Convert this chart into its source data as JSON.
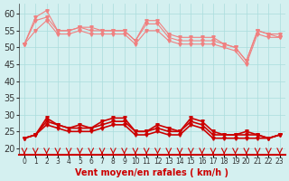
{
  "x": [
    0,
    1,
    2,
    3,
    4,
    5,
    6,
    7,
    8,
    9,
    10,
    11,
    12,
    13,
    14,
    15,
    16,
    17,
    18,
    19,
    20,
    21,
    22,
    23
  ],
  "rafales_max": [
    51,
    59,
    61,
    55,
    55,
    56,
    56,
    55,
    55,
    55,
    52,
    58,
    58,
    54,
    53,
    53,
    53,
    53,
    51,
    50,
    46,
    55,
    54,
    54
  ],
  "rafales_mid": [
    51,
    58,
    59,
    55,
    55,
    56,
    55,
    55,
    55,
    55,
    52,
    57,
    57,
    53,
    52,
    52,
    52,
    52,
    51,
    50,
    46,
    55,
    54,
    53
  ],
  "rafales_min": [
    51,
    55,
    58,
    54,
    54,
    55,
    54,
    54,
    54,
    54,
    51,
    55,
    55,
    52,
    51,
    51,
    51,
    51,
    50,
    49,
    45,
    54,
    53,
    53
  ],
  "vent_max": [
    23,
    24,
    29,
    27,
    26,
    27,
    26,
    28,
    29,
    29,
    25,
    25,
    27,
    26,
    25,
    29,
    28,
    25,
    24,
    24,
    25,
    24,
    23,
    24
  ],
  "vent_mid": [
    23,
    24,
    28,
    27,
    26,
    26,
    26,
    27,
    28,
    28,
    25,
    25,
    26,
    25,
    25,
    28,
    27,
    24,
    24,
    24,
    24,
    24,
    23,
    24
  ],
  "vent_min": [
    23,
    24,
    27,
    26,
    25,
    25,
    25,
    26,
    27,
    27,
    24,
    24,
    25,
    24,
    24,
    27,
    26,
    23,
    23,
    23,
    23,
    23,
    23,
    24
  ],
  "bg_color": "#d4f0f0",
  "grid_color": "#aadddd",
  "line_color_rafales": "#f08080",
  "line_color_vent": "#cc0000",
  "marker_rafales": "v",
  "marker_vent": "v",
  "xlabel": "Vent moyen/en rafales ( km/h )",
  "arrow_color": "#cc0000",
  "ylim": [
    18,
    63
  ],
  "yticks": [
    20,
    25,
    30,
    35,
    40,
    45,
    50,
    55,
    60
  ],
  "title_fontsize": 7,
  "axis_fontsize": 7
}
